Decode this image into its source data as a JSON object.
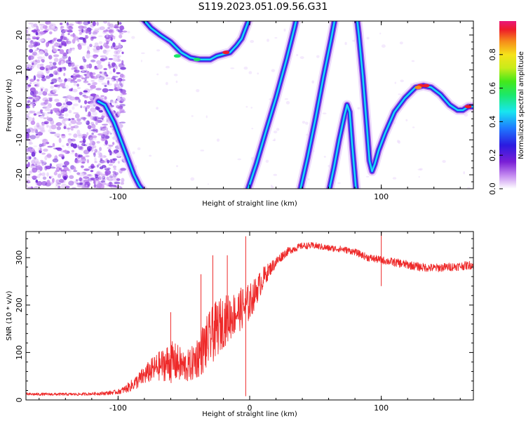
{
  "title": "S119.2023.051.09.56.G31",
  "chart_data": [
    {
      "type": "heatmap",
      "xlabel": "Height of straight line (km)",
      "ylabel": "Frequency (Hz)",
      "xlim": [
        -170,
        170
      ],
      "ylim": [
        -24,
        24
      ],
      "x_ticks": [
        -100,
        0,
        100
      ],
      "x_tick_labels": [
        "-100",
        "",
        "100"
      ],
      "y_ticks": [
        -20,
        -10,
        0,
        10,
        20
      ],
      "y_tick_labels": [
        "-20",
        "-10",
        "0",
        "10",
        "20"
      ],
      "colorbar": {
        "label": "Normalized spectral amplitude",
        "range": [
          0,
          1
        ],
        "ticks": [
          0.0,
          0.2,
          0.4,
          0.6,
          0.8
        ],
        "tick_labels": [
          "0.0",
          "0.2",
          "0.4",
          "0.6",
          "0.8"
        ]
      },
      "traces": [
        {
          "x": [
            -115,
            -110,
            -103,
            -97,
            -92,
            -88,
            -84,
            -80,
            -78
          ],
          "y": [
            1,
            0,
            -5,
            -11,
            -16,
            -20,
            -23,
            -25,
            -26
          ]
        },
        {
          "x": [
            -82,
            -75,
            -68,
            -60,
            -52,
            -45,
            -38,
            -30,
            -25,
            -20,
            -15,
            -10,
            -6,
            -3,
            0
          ],
          "y": [
            25,
            22,
            20,
            18,
            15,
            13.5,
            13,
            13,
            14,
            14.5,
            15,
            17,
            19,
            22,
            25
          ]
        },
        {
          "x": [
            -2,
            5,
            12,
            20,
            28,
            34,
            37
          ],
          "y": [
            -25,
            -17,
            -8,
            2,
            13,
            22,
            27
          ]
        },
        {
          "x": [
            38,
            44,
            50,
            56,
            62,
            66
          ],
          "y": [
            -25,
            -15,
            -4,
            8,
            19,
            27
          ]
        },
        {
          "x": [
            60,
            64,
            68,
            72,
            74,
            76,
            78,
            81
          ],
          "y": [
            -25,
            -18,
            -10,
            -3,
            0,
            -2,
            -12,
            -25
          ]
        },
        {
          "x": [
            80,
            83,
            86,
            89,
            91,
            93,
            95,
            98,
            103,
            110,
            118,
            126,
            132,
            138,
            145,
            152,
            158,
            162,
            166,
            170
          ],
          "y": [
            30,
            20,
            8,
            -6,
            -16,
            -19,
            -17,
            -13,
            -8,
            -2,
            2,
            5,
            5.5,
            5,
            3,
            0,
            -1.5,
            -1.5,
            -0.5,
            -0.5
          ]
        }
      ]
    },
    {
      "type": "line",
      "xlabel": "Height of straight line (km)",
      "ylabel": "SNR (10 * v/v)",
      "xlim": [
        -170,
        170
      ],
      "ylim": [
        0,
        355
      ],
      "x_ticks": [
        -100,
        0,
        100
      ],
      "x_tick_labels": [
        "-100",
        "0",
        "100"
      ],
      "y_ticks": [
        0,
        100,
        200,
        300
      ],
      "y_tick_labels": [
        "0",
        "100",
        "200",
        "300"
      ],
      "series": [
        {
          "color": "#ee2a2a",
          "x": [
            -170,
            -160,
            -150,
            -140,
            -130,
            -120,
            -110,
            -100,
            -95,
            -90,
            -85,
            -80,
            -75,
            -70,
            -65,
            -60,
            -55,
            -50,
            -45,
            -40,
            -35,
            -30,
            -25,
            -20,
            -15,
            -10,
            -5,
            0,
            5,
            10,
            15,
            20,
            25,
            30,
            40,
            50,
            60,
            70,
            80,
            90,
            100,
            110,
            120,
            130,
            140,
            150,
            160,
            170
          ],
          "values": [
            12,
            12,
            12,
            12,
            12,
            13,
            14,
            17,
            22,
            30,
            40,
            52,
            62,
            70,
            75,
            80,
            78,
            70,
            72,
            90,
            110,
            130,
            150,
            165,
            175,
            185,
            195,
            205,
            230,
            255,
            275,
            290,
            305,
            315,
            325,
            325,
            320,
            318,
            312,
            300,
            295,
            290,
            285,
            280,
            278,
            280,
            282,
            285
          ],
          "noise": [
            3,
            3,
            3,
            3,
            3,
            3,
            4,
            5,
            8,
            12,
            16,
            20,
            25,
            30,
            35,
            45,
            40,
            35,
            35,
            45,
            55,
            60,
            60,
            55,
            50,
            45,
            45,
            40,
            30,
            25,
            15,
            12,
            10,
            8,
            7,
            7,
            7,
            7,
            7,
            8,
            8,
            9,
            9,
            9,
            9,
            9,
            9,
            9
          ],
          "spikes": [
            {
              "x": -60,
              "y": 185
            },
            {
              "x": -37,
              "y": 265
            },
            {
              "x": -28,
              "y": 305
            },
            {
              "x": -17,
              "y": 305
            },
            {
              "x": -3,
              "y": 345
            },
            {
              "x": -3,
              "y": 8
            },
            {
              "x": 100,
              "y": 355
            },
            {
              "x": 100,
              "y": 240
            }
          ]
        }
      ]
    }
  ]
}
